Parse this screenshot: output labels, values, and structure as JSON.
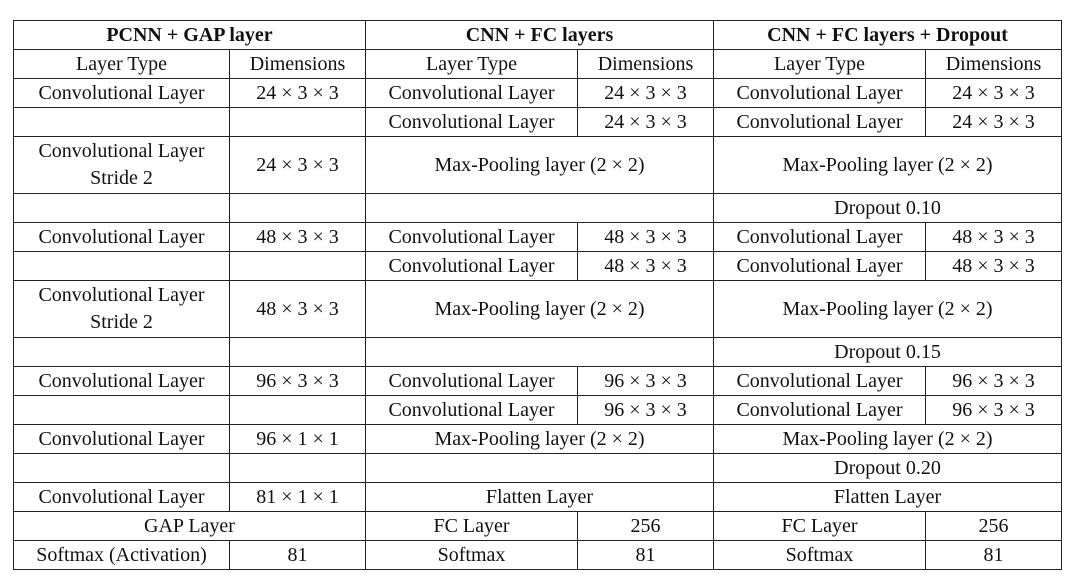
{
  "headers": {
    "pcnn": "PCNN + GAP layer",
    "cnn": "CNN + FC layers",
    "cnn_dropout": "CNN + FC layers + Dropout"
  },
  "subheaders": {
    "layer_type": "Layer Type",
    "dimensions": "Dimensions"
  },
  "labels": {
    "conv": "Convolutional Layer",
    "stride": "Stride 2",
    "maxpool": "Max-Pooling layer (2 × 2)",
    "flatten": "Flatten Layer",
    "fc": "FC Layer",
    "softmax": "Softmax",
    "softmax_act": "Softmax (Activation)",
    "gap": "GAP Layer",
    "dropout_10": "Dropout 0.10",
    "dropout_15": "Dropout 0.15",
    "dropout_20": "Dropout 0.20"
  },
  "dims": {
    "d24": "24 × 3 × 3",
    "d48": "48 × 3 × 3",
    "d96": "96 × 3 × 3",
    "d96_1": "96 × 1 × 1",
    "d81_1": "81 × 1 × 1",
    "fc256": "256",
    "out81": "81"
  }
}
